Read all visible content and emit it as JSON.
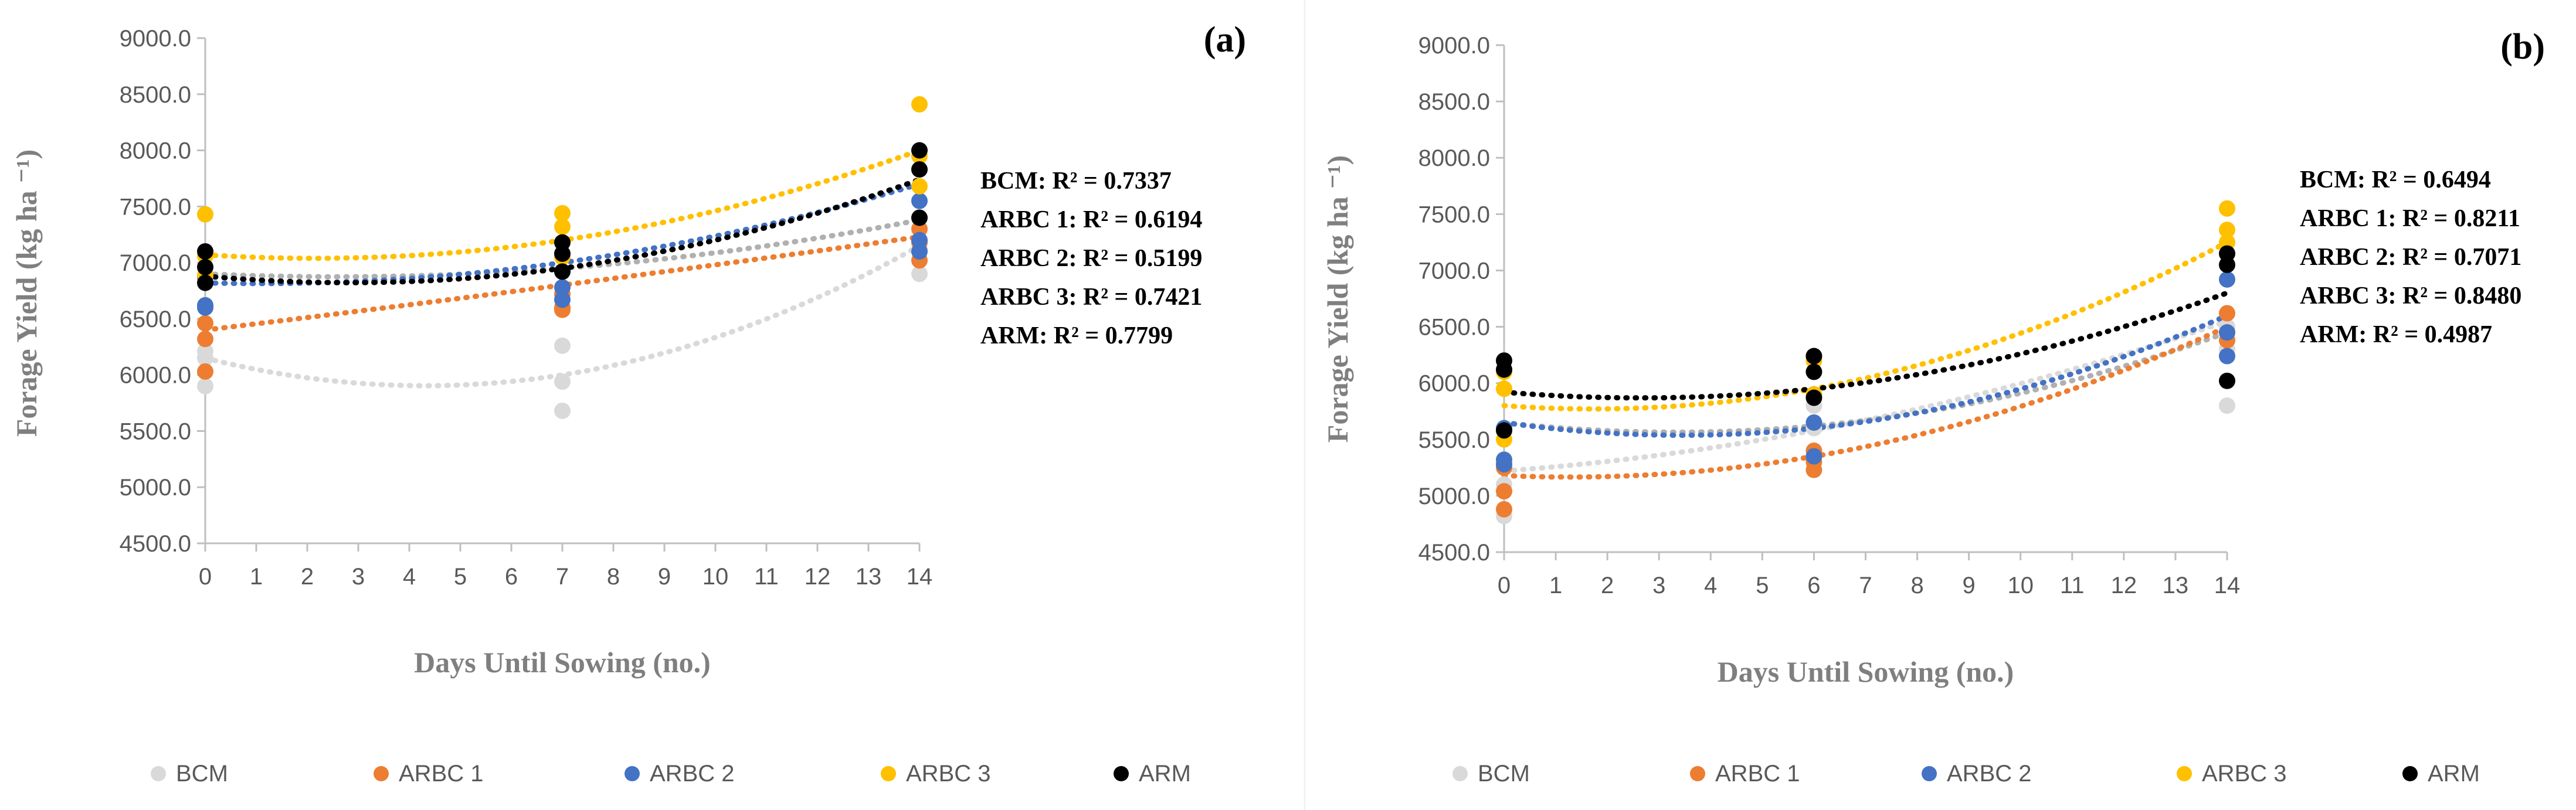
{
  "colors": {
    "BCM": "#d9d9d9",
    "ARBC 1": "#ed7d31",
    "ARBC 2": "#4472c4",
    "ARBC 3": "#ffc000",
    "ARM": "#000000",
    "axis": "#bfbfbf",
    "tick_text": "#595959",
    "label_text": "#7f7f7f"
  },
  "chart_data": [
    {
      "type": "scatter",
      "panel_label": "(a)",
      "title": "",
      "xlabel": "Days Until Sowing (no.)",
      "ylabel": "Forage Yield (kg ha ⁻¹)",
      "xlim": [
        0,
        14
      ],
      "ylim": [
        4500,
        9000
      ],
      "xticks": [
        "0",
        "1",
        "2",
        "3",
        "4",
        "5",
        "6",
        "7",
        "8",
        "9",
        "10",
        "11",
        "12",
        "13",
        "14"
      ],
      "yticks": [
        "4500.0",
        "5000.0",
        "5500.0",
        "6000.0",
        "6500.0",
        "7000.0",
        "7500.0",
        "8000.0",
        "8500.0",
        "9000.0"
      ],
      "trendline": "polynomial (order 2), dotted",
      "legend_position": "bottom",
      "series": [
        {
          "name": "BCM",
          "x": [
            0,
            0,
            0,
            7,
            7,
            7,
            14,
            14,
            14
          ],
          "y": [
            6210,
            6150,
            5900,
            6260,
            5940,
            5680,
            7180,
            7120,
            6900
          ],
          "trend": [
            6150,
            6000,
            7150
          ],
          "r2_label": "BCM: R² = 0.7337"
        },
        {
          "name": "BCM",
          "x": [],
          "y": [],
          "trend": [
            6900,
            6950,
            7380
          ],
          "r2_label": ""
        },
        {
          "name": "ARBC 1",
          "x": [
            0,
            0,
            0,
            7,
            7,
            7,
            14,
            14,
            14
          ],
          "y": [
            6460,
            6320,
            6030,
            6720,
            6600,
            6580,
            7300,
            7180,
            7020
          ],
          "trend": [
            6400,
            6800,
            7230
          ],
          "r2_label": "ARBC 1: R² = 0.6194"
        },
        {
          "name": "ARBC 2",
          "x": [
            0,
            0,
            0,
            7,
            7,
            7,
            14,
            14,
            14
          ],
          "y": [
            6870,
            6620,
            6600,
            6920,
            6780,
            6670,
            7550,
            7200,
            7100
          ],
          "trend": [
            6820,
            7000,
            7700
          ],
          "r2_label": "ARBC 2: R² = 0.5199"
        },
        {
          "name": "ARBC 3",
          "x": [
            0,
            0,
            0,
            7,
            7,
            7,
            14,
            14,
            14
          ],
          "y": [
            7430,
            7060,
            6890,
            7440,
            7320,
            7050,
            8410,
            7950,
            7680
          ],
          "trend": [
            7070,
            7200,
            8000
          ],
          "r2_label": "ARBC 3: R² = 0.7421"
        },
        {
          "name": "ARM",
          "x": [
            0,
            0,
            0,
            7,
            7,
            7,
            14,
            14,
            14
          ],
          "y": [
            7100,
            6960,
            6820,
            7180,
            7080,
            6920,
            8000,
            7830,
            7400
          ],
          "trend": [
            6880,
            6950,
            7740
          ],
          "r2_label": "ARM: R² = 0.7799"
        }
      ]
    },
    {
      "type": "scatter",
      "panel_label": "(b)",
      "title": "",
      "xlabel": "Days Until Sowing (no.)",
      "ylabel": "Forage Yield (kg ha ⁻¹)",
      "xlim": [
        0,
        14
      ],
      "ylim": [
        4500,
        9000
      ],
      "xticks": [
        "0",
        "1",
        "2",
        "3",
        "4",
        "5",
        "6",
        "7",
        "8",
        "9",
        "10",
        "11",
        "12",
        "13",
        "14"
      ],
      "yticks": [
        "4500.0",
        "5000.0",
        "5500.0",
        "6000.0",
        "6500.0",
        "7000.0",
        "7500.0",
        "8000.0",
        "8500.0",
        "9000.0"
      ],
      "trendline": "polynomial (order 2), dotted",
      "legend_position": "bottom",
      "series": [
        {
          "name": "BCM",
          "x": [
            0,
            0,
            0,
            6,
            6,
            6,
            14,
            14,
            14
          ],
          "y": [
            5250,
            5100,
            4820,
            5800,
            5600,
            5350,
            6500,
            6300,
            5800
          ],
          "trend": [
            5220,
            5580,
            6550
          ],
          "r2_label": "BCM: R² = 0.6494"
        },
        {
          "name": "BCM",
          "x": [],
          "y": [],
          "trend": [
            5650,
            5620,
            6450
          ],
          "r2_label": ""
        },
        {
          "name": "ARBC 1",
          "x": [
            0,
            0,
            0,
            6,
            6,
            6,
            14,
            14,
            14
          ],
          "y": [
            5250,
            5040,
            4880,
            5400,
            5300,
            5230,
            6620,
            6450,
            6380
          ],
          "trend": [
            5180,
            5350,
            6500
          ],
          "r2_label": "ARBC 1: R² = 0.8211"
        },
        {
          "name": "ARBC 2",
          "x": [
            0,
            0,
            0,
            6,
            6,
            6,
            14,
            14,
            14
          ],
          "y": [
            5600,
            5320,
            5280,
            5900,
            5650,
            5350,
            6450,
            6240,
            6920
          ],
          "trend": [
            5650,
            5600,
            6600
          ],
          "r2_label": "ARBC 2: R² = 0.7071"
        },
        {
          "name": "ARBC 3",
          "x": [
            0,
            0,
            0,
            6,
            6,
            6,
            14,
            14,
            14
          ],
          "y": [
            6100,
            5950,
            5500,
            6230,
            6200,
            5900,
            7550,
            7360,
            7250
          ],
          "trend": [
            5800,
            5950,
            7250
          ],
          "r2_label": "ARBC 3: R² = 0.8480"
        },
        {
          "name": "ARM",
          "x": [
            0,
            0,
            0,
            6,
            6,
            6,
            14,
            14,
            14
          ],
          "y": [
            6200,
            6120,
            5580,
            6240,
            6100,
            5870,
            7150,
            7050,
            6020
          ],
          "trend": [
            5920,
            5950,
            6800
          ],
          "r2_label": "ARM: R² = 0.4987"
        }
      ]
    }
  ],
  "legend": [
    "BCM",
    "ARBC 1",
    "ARBC 2",
    "ARBC 3",
    "ARM"
  ]
}
